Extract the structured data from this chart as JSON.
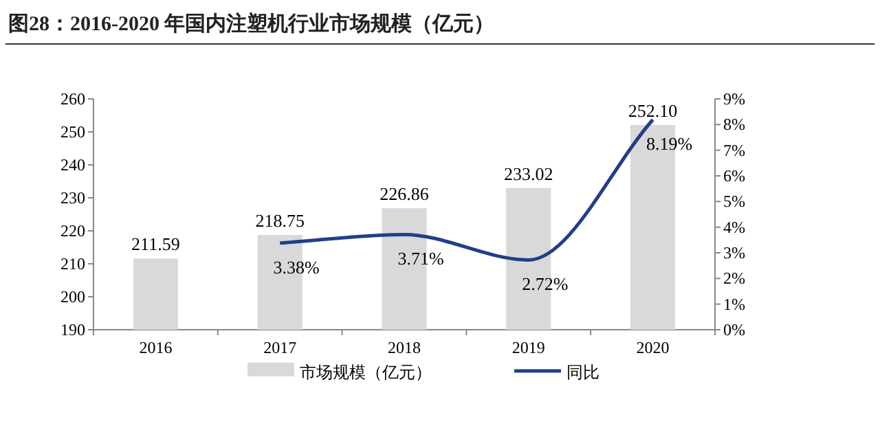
{
  "chart_data": {
    "type": "bar",
    "title": "图28：2016-2020 年国内注塑机行业市场规模（亿元）",
    "categories": [
      "2016",
      "2017",
      "2018",
      "2019",
      "2020"
    ],
    "series": [
      {
        "name": "市场规模（亿元）",
        "color": "#d9d9d9",
        "values": [
          211.59,
          218.75,
          226.86,
          233.02,
          252.1
        ],
        "value_labels": [
          "211.59",
          "218.75",
          "226.86",
          "233.02",
          "252.10"
        ]
      },
      {
        "name": "同比",
        "type": "line",
        "axis": "y2",
        "color": "#1f3f8a",
        "values": [
          null,
          3.38,
          3.71,
          2.72,
          8.19
        ],
        "value_labels": [
          null,
          "3.38%",
          "3.71%",
          "2.72%",
          "8.19%"
        ]
      }
    ],
    "ylim": [
      190,
      260
    ],
    "yticks": [
      190,
      200,
      210,
      220,
      230,
      240,
      250,
      260
    ],
    "y2lim": [
      0,
      9
    ],
    "y2ticks": [
      {
        "value": 0,
        "label": "0%"
      },
      {
        "value": 1,
        "label": "1%"
      },
      {
        "value": 2,
        "label": "2%"
      },
      {
        "value": 3,
        "label": "3%"
      },
      {
        "value": 4,
        "label": "4%"
      },
      {
        "value": 5,
        "label": "5%"
      },
      {
        "value": 6,
        "label": "6%"
      },
      {
        "value": 7,
        "label": "7%"
      },
      {
        "value": 8,
        "label": "8%"
      },
      {
        "value": 9,
        "label": "9%"
      }
    ],
    "legend": "bottom",
    "grid": false,
    "marker": "none"
  }
}
